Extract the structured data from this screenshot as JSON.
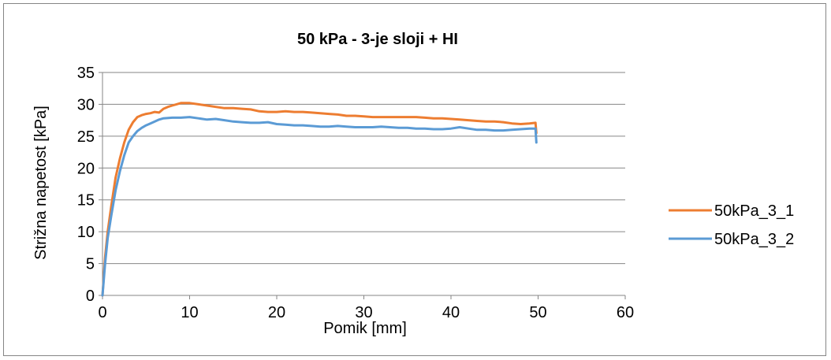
{
  "chart_data": {
    "type": "line",
    "title": "50 kPa - 3-je sloji + HI",
    "xlabel": "Pomik [mm]",
    "ylabel": "Strižna napetost [kPa]",
    "xlim": [
      0,
      60
    ],
    "ylim": [
      0,
      35
    ],
    "xticks": [
      0,
      10,
      20,
      30,
      40,
      50,
      60
    ],
    "yticks": [
      0,
      5,
      10,
      15,
      20,
      25,
      30,
      35
    ],
    "grid": "horizontal",
    "legend_position": "right",
    "series": [
      {
        "name": "50kPa_3_1",
        "color": "#ED7D31",
        "x": [
          0,
          0.3,
          0.6,
          1.0,
          1.5,
          2.0,
          2.5,
          3.0,
          3.5,
          4.0,
          4.5,
          5.0,
          5.5,
          6.0,
          6.5,
          7.0,
          7.5,
          8.0,
          8.5,
          9.0,
          10.0,
          11.0,
          12.0,
          13.0,
          14.0,
          15.0,
          16.0,
          17.0,
          18.0,
          19.0,
          20.0,
          21.0,
          22.0,
          23.0,
          24.0,
          25.0,
          26.0,
          27.0,
          28.0,
          29.0,
          30.0,
          31.0,
          32.0,
          33.0,
          34.0,
          35.0,
          36.0,
          37.0,
          38.0,
          39.0,
          40.0,
          41.0,
          42.0,
          43.0,
          44.0,
          45.0,
          46.0,
          47.0,
          48.0,
          49.0,
          49.7,
          49.8
        ],
        "y": [
          0,
          6,
          10,
          14,
          18.5,
          21.5,
          24,
          26,
          27.2,
          28.0,
          28.3,
          28.5,
          28.6,
          28.8,
          28.7,
          29.3,
          29.6,
          29.8,
          30.0,
          30.2,
          30.2,
          30.0,
          29.8,
          29.6,
          29.4,
          29.4,
          29.3,
          29.2,
          28.9,
          28.8,
          28.8,
          28.9,
          28.8,
          28.8,
          28.7,
          28.6,
          28.5,
          28.4,
          28.2,
          28.2,
          28.1,
          28.0,
          28.0,
          28.0,
          28.0,
          28.0,
          28.0,
          27.9,
          27.8,
          27.8,
          27.7,
          27.6,
          27.5,
          27.4,
          27.3,
          27.3,
          27.2,
          27.0,
          26.9,
          27.0,
          27.1,
          25.5
        ]
      },
      {
        "name": "50kPa_3_2",
        "color": "#5B9BD5",
        "x": [
          0,
          0.3,
          0.6,
          1.0,
          1.5,
          2.0,
          2.5,
          3.0,
          3.5,
          4.0,
          4.5,
          5.0,
          5.5,
          6.0,
          6.5,
          7.0,
          8.0,
          9.0,
          10.0,
          11.0,
          12.0,
          13.0,
          14.0,
          15.0,
          16.0,
          17.0,
          18.0,
          19.0,
          20.0,
          21.0,
          22.0,
          23.0,
          24.0,
          25.0,
          26.0,
          27.0,
          28.0,
          29.0,
          30.0,
          31.0,
          32.0,
          33.0,
          34.0,
          35.0,
          36.0,
          37.0,
          38.0,
          39.0,
          40.0,
          41.0,
          42.0,
          43.0,
          44.0,
          45.0,
          46.0,
          47.0,
          48.0,
          49.0,
          49.7,
          49.8
        ],
        "y": [
          0,
          5,
          9,
          12.5,
          16.5,
          19.5,
          22,
          24,
          25.0,
          25.8,
          26.3,
          26.7,
          27.0,
          27.3,
          27.6,
          27.8,
          27.9,
          27.9,
          28.0,
          27.8,
          27.6,
          27.7,
          27.5,
          27.3,
          27.2,
          27.1,
          27.1,
          27.2,
          26.9,
          26.8,
          26.7,
          26.7,
          26.6,
          26.5,
          26.5,
          26.6,
          26.5,
          26.4,
          26.4,
          26.4,
          26.5,
          26.4,
          26.3,
          26.3,
          26.2,
          26.2,
          26.1,
          26.1,
          26.2,
          26.4,
          26.2,
          26.0,
          26.0,
          25.9,
          25.9,
          26.0,
          26.1,
          26.2,
          26.2,
          24.0
        ]
      }
    ]
  }
}
